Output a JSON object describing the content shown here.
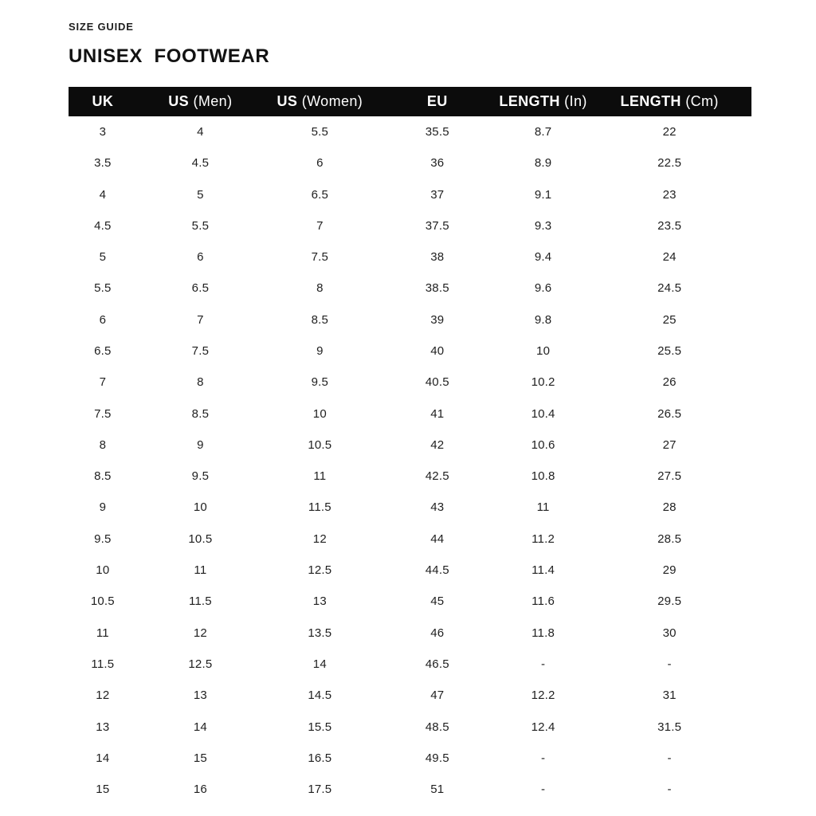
{
  "page": {
    "eyebrow": "SIZE GUIDE",
    "title": "UNISEX  FOOTWEAR"
  },
  "colors": {
    "header_bg": "#0c0c0c",
    "header_text": "#ffffff",
    "body_text": "#1f1f1f",
    "page_bg": "#ffffff"
  },
  "table": {
    "columns": [
      {
        "strong": "UK",
        "light": ""
      },
      {
        "strong": "US",
        "light": " (Men)"
      },
      {
        "strong": "US",
        "light": " (Women)"
      },
      {
        "strong": "EU",
        "light": ""
      },
      {
        "strong": "LENGTH",
        "light": " (In)"
      },
      {
        "strong": "LENGTH",
        "light": " (Cm)"
      }
    ],
    "rows": [
      [
        "3",
        "4",
        "5.5",
        "35.5",
        "8.7",
        "22"
      ],
      [
        "3.5",
        "4.5",
        "6",
        "36",
        "8.9",
        "22.5"
      ],
      [
        "4",
        "5",
        "6.5",
        "37",
        "9.1",
        "23"
      ],
      [
        "4.5",
        "5.5",
        "7",
        "37.5",
        "9.3",
        "23.5"
      ],
      [
        "5",
        "6",
        "7.5",
        "38",
        "9.4",
        "24"
      ],
      [
        "5.5",
        "6.5",
        "8",
        "38.5",
        "9.6",
        "24.5"
      ],
      [
        "6",
        "7",
        "8.5",
        "39",
        "9.8",
        "25"
      ],
      [
        "6.5",
        "7.5",
        "9",
        "40",
        "10",
        "25.5"
      ],
      [
        "7",
        "8",
        "9.5",
        "40.5",
        "10.2",
        "26"
      ],
      [
        "7.5",
        "8.5",
        "10",
        "41",
        "10.4",
        "26.5"
      ],
      [
        "8",
        "9",
        "10.5",
        "42",
        "10.6",
        "27"
      ],
      [
        "8.5",
        "9.5",
        "11",
        "42.5",
        "10.8",
        "27.5"
      ],
      [
        "9",
        "10",
        "11.5",
        "43",
        "11",
        "28"
      ],
      [
        "9.5",
        "10.5",
        "12",
        "44",
        "11.2",
        "28.5"
      ],
      [
        "10",
        "11",
        "12.5",
        "44.5",
        "11.4",
        "29"
      ],
      [
        "10.5",
        "11.5",
        "13",
        "45",
        "11.6",
        "29.5"
      ],
      [
        "11",
        "12",
        "13.5",
        "46",
        "11.8",
        "30"
      ],
      [
        "11.5",
        "12.5",
        "14",
        "46.5",
        "-",
        "-"
      ],
      [
        "12",
        "13",
        "14.5",
        "47",
        "12.2",
        "31"
      ],
      [
        "13",
        "14",
        "15.5",
        "48.5",
        "12.4",
        "31.5"
      ],
      [
        "14",
        "15",
        "16.5",
        "49.5",
        "-",
        "-"
      ],
      [
        "15",
        "16",
        "17.5",
        "51",
        "-",
        "-"
      ]
    ]
  }
}
